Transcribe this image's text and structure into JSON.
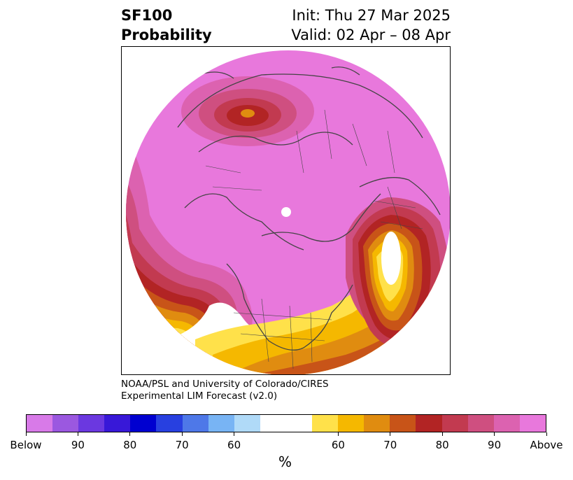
{
  "title": {
    "line1": "SF100",
    "line2": "Probability",
    "init": "Init: Thu 27 Mar 2025",
    "valid": "Valid: 02 Apr – 08 Apr"
  },
  "credit": {
    "line1": "NOAA/PSL and University of Colorado/CIRES",
    "line2": "Experimental LIM Forecast (v2.0)"
  },
  "colorbar": {
    "unit": "%",
    "colors": [
      "#d87ae8",
      "#9b58e0",
      "#6b38e0",
      "#3818d8",
      "#0000d0",
      "#2840e0",
      "#4e78e8",
      "#78b4f4",
      "#b0daf8",
      "#ffffff",
      "#ffffff",
      "#ffe14a",
      "#f5b800",
      "#e08c10",
      "#c85418",
      "#b22424",
      "#c23a50",
      "#cf4f80",
      "#dc62b0",
      "#e878dc"
    ],
    "ticks": [
      "Below",
      "90",
      "80",
      "70",
      "60",
      "60",
      "70",
      "80",
      "90",
      "Above"
    ]
  },
  "legend_colors": {
    "above": "#e878dc",
    "below_light": "#b0daf8"
  }
}
